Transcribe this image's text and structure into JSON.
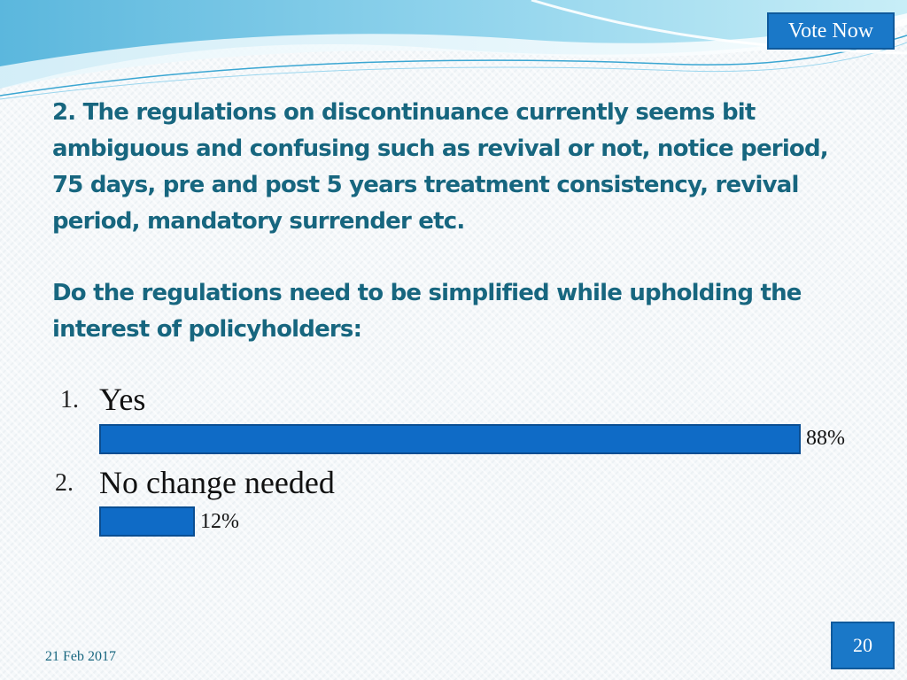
{
  "header": {
    "vote_button_label": "Vote Now"
  },
  "question": {
    "text": "2. The regulations on discontinuance currently seems bit ambiguous and confusing such as revival or not, notice period, 75 days, pre and post 5 years treatment consistency, revival period, mandatory surrender etc.",
    "prompt": "Do the regulations need to be simplified while upholding the interest of policyholders:"
  },
  "options": [
    {
      "number": "1.",
      "label": "Yes",
      "percent_label": "88%",
      "percent": 88
    },
    {
      "number": "2.",
      "label": "No change needed",
      "percent_label": "12%",
      "percent": 12
    }
  ],
  "footer": {
    "date": "21 Feb 2017",
    "page_number": "20"
  },
  "colors": {
    "accent": "#1a78c8",
    "bar": "#0f6bc6",
    "heading": "#17667f"
  }
}
